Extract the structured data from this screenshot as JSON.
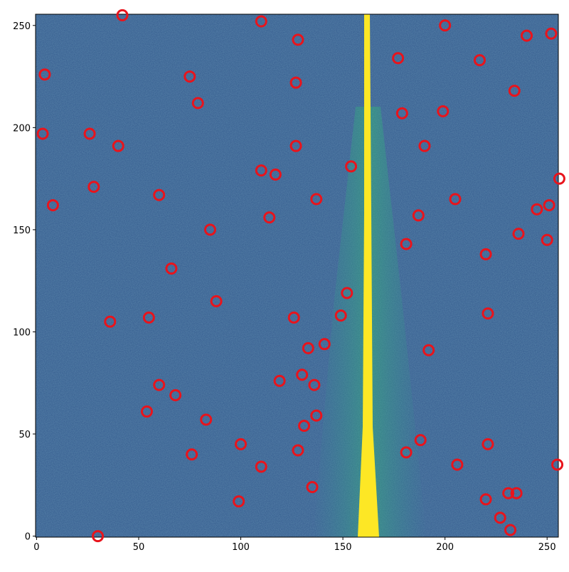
{
  "chart_data": {
    "type": "scatter",
    "x": [
      42,
      110,
      128,
      200,
      240,
      252,
      177,
      217,
      4,
      75,
      127,
      234,
      79,
      179,
      199,
      3,
      26,
      40,
      127,
      190,
      154,
      110,
      117,
      256,
      28,
      60,
      137,
      205,
      8,
      245,
      251,
      114,
      187,
      85,
      236,
      250,
      181,
      220,
      66,
      152,
      88,
      221,
      55,
      126,
      149,
      36,
      141,
      133,
      192,
      130,
      119,
      136,
      60,
      68,
      137,
      54,
      83,
      131,
      188,
      100,
      221,
      128,
      181,
      76,
      206,
      255,
      110,
      135,
      231,
      235,
      220,
      99,
      227,
      232,
      30
    ],
    "values": [
      255,
      252,
      243,
      250,
      245,
      246,
      234,
      233,
      226,
      225,
      222,
      218,
      212,
      207,
      208,
      197,
      197,
      191,
      191,
      191,
      181,
      179,
      177,
      175,
      171,
      167,
      165,
      165,
      162,
      160,
      162,
      156,
      157,
      150,
      148,
      145,
      143,
      138,
      131,
      119,
      115,
      109,
      107,
      107,
      108,
      105,
      94,
      92,
      91,
      79,
      76,
      74,
      74,
      69,
      59,
      61,
      57,
      54,
      47,
      45,
      45,
      42,
      41,
      40,
      35,
      35,
      34,
      24,
      21,
      21,
      18,
      17,
      9,
      3,
      0
    ],
    "color": "#e8141c",
    "xlim": [
      -0.5,
      255.5
    ],
    "ylim": [
      -0.5,
      255.5
    ],
    "xticks": [
      0,
      50,
      100,
      150,
      200,
      250
    ],
    "yticks": [
      0,
      50,
      100,
      150,
      200,
      250
    ]
  }
}
